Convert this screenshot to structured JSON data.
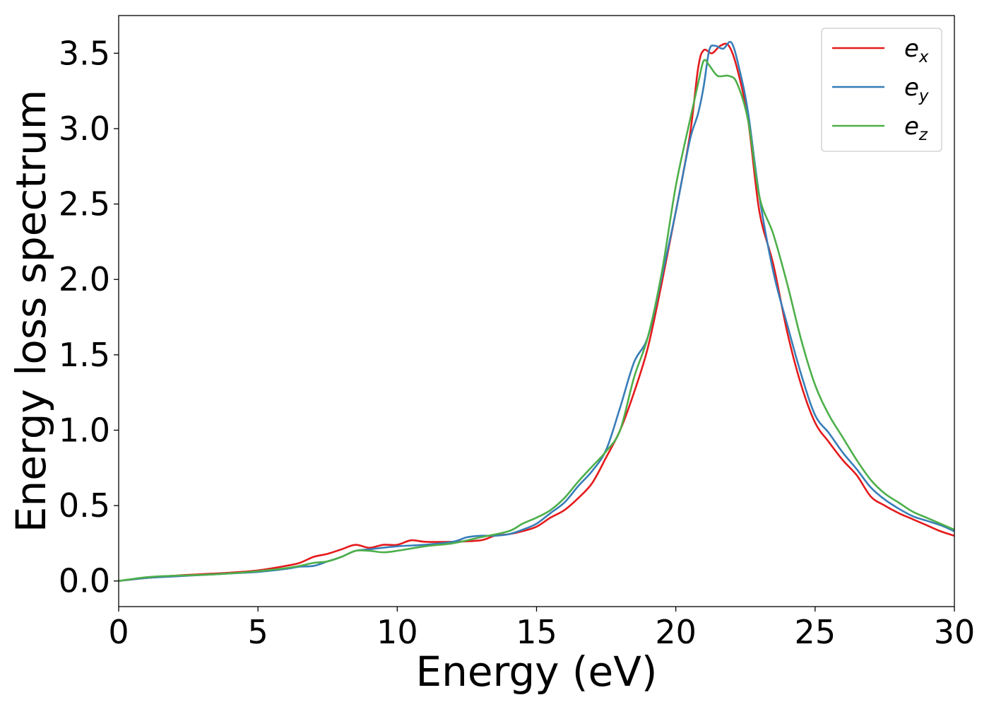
{
  "chart_data": {
    "type": "line",
    "title": "",
    "xlabel": "Energy (eV)",
    "ylabel": "Energy loss spectrum",
    "xlim": [
      0,
      30
    ],
    "ylim": [
      -0.17,
      3.75
    ],
    "xticks": [
      0,
      5,
      10,
      15,
      20,
      25,
      30
    ],
    "xtick_labels": [
      "0",
      "5",
      "10",
      "15",
      "20",
      "25",
      "30"
    ],
    "yticks": [
      0.0,
      0.5,
      1.0,
      1.5,
      2.0,
      2.5,
      3.0,
      3.5
    ],
    "ytick_labels": [
      "0.0",
      "0.5",
      "1.0",
      "1.5",
      "2.0",
      "2.5",
      "3.0",
      "3.5"
    ],
    "grid": false,
    "legend_position": "top-right",
    "series": [
      {
        "name": "e",
        "subscript": "x",
        "color": "#e41a1c",
        "points": [
          [
            0,
            0
          ],
          [
            1,
            0.02
          ],
          [
            2,
            0.035
          ],
          [
            3,
            0.045
          ],
          [
            4,
            0.055
          ],
          [
            5,
            0.07
          ],
          [
            6,
            0.1
          ],
          [
            6.5,
            0.12
          ],
          [
            7,
            0.16
          ],
          [
            7.5,
            0.18
          ],
          [
            8,
            0.21
          ],
          [
            8.5,
            0.24
          ],
          [
            9,
            0.22
          ],
          [
            9.5,
            0.24
          ],
          [
            10,
            0.24
          ],
          [
            10.5,
            0.27
          ],
          [
            11,
            0.26
          ],
          [
            12,
            0.26
          ],
          [
            13,
            0.27
          ],
          [
            13.5,
            0.3
          ],
          [
            14,
            0.31
          ],
          [
            14.5,
            0.33
          ],
          [
            15,
            0.36
          ],
          [
            15.5,
            0.42
          ],
          [
            16,
            0.47
          ],
          [
            16.5,
            0.55
          ],
          [
            17,
            0.65
          ],
          [
            17.5,
            0.82
          ],
          [
            18,
            1.0
          ],
          [
            18.5,
            1.25
          ],
          [
            19,
            1.55
          ],
          [
            19.5,
            1.98
          ],
          [
            20,
            2.45
          ],
          [
            20.5,
            2.95
          ],
          [
            20.8,
            3.4
          ],
          [
            21,
            3.52
          ],
          [
            21.3,
            3.5
          ],
          [
            21.6,
            3.55
          ],
          [
            21.9,
            3.55
          ],
          [
            22.2,
            3.4
          ],
          [
            22.6,
            3.05
          ],
          [
            23,
            2.45
          ],
          [
            23.5,
            2.1
          ],
          [
            24,
            1.65
          ],
          [
            24.5,
            1.3
          ],
          [
            25,
            1.05
          ],
          [
            25.5,
            0.92
          ],
          [
            26,
            0.8
          ],
          [
            26.5,
            0.7
          ],
          [
            27,
            0.56
          ],
          [
            27.5,
            0.5
          ],
          [
            28,
            0.45
          ],
          [
            28.5,
            0.41
          ],
          [
            29,
            0.37
          ],
          [
            29.5,
            0.33
          ],
          [
            30,
            0.3
          ]
        ]
      },
      {
        "name": "e",
        "subscript": "y",
        "color": "#377eb8",
        "points": [
          [
            0,
            0
          ],
          [
            1,
            0.02
          ],
          [
            2,
            0.03
          ],
          [
            3,
            0.04
          ],
          [
            4,
            0.05
          ],
          [
            5,
            0.06
          ],
          [
            6,
            0.08
          ],
          [
            6.5,
            0.095
          ],
          [
            7,
            0.1
          ],
          [
            7.5,
            0.13
          ],
          [
            8,
            0.16
          ],
          [
            8.5,
            0.2
          ],
          [
            9,
            0.21
          ],
          [
            10,
            0.23
          ],
          [
            11,
            0.24
          ],
          [
            12,
            0.26
          ],
          [
            12.5,
            0.29
          ],
          [
            13,
            0.3
          ],
          [
            13.5,
            0.3
          ],
          [
            14,
            0.31
          ],
          [
            14.5,
            0.34
          ],
          [
            15,
            0.38
          ],
          [
            15.5,
            0.45
          ],
          [
            16,
            0.52
          ],
          [
            16.5,
            0.63
          ],
          [
            17,
            0.73
          ],
          [
            17.5,
            0.87
          ],
          [
            18,
            1.15
          ],
          [
            18.5,
            1.45
          ],
          [
            19,
            1.62
          ],
          [
            19.5,
            2.02
          ],
          [
            20,
            2.45
          ],
          [
            20.5,
            2.92
          ],
          [
            20.8,
            3.1
          ],
          [
            21,
            3.28
          ],
          [
            21.2,
            3.52
          ],
          [
            21.4,
            3.55
          ],
          [
            21.7,
            3.53
          ],
          [
            22,
            3.57
          ],
          [
            22.3,
            3.38
          ],
          [
            22.6,
            3.1
          ],
          [
            23,
            2.55
          ],
          [
            23.5,
            2.05
          ],
          [
            24,
            1.7
          ],
          [
            24.5,
            1.37
          ],
          [
            25,
            1.1
          ],
          [
            25.5,
            0.98
          ],
          [
            26,
            0.85
          ],
          [
            26.5,
            0.74
          ],
          [
            27,
            0.62
          ],
          [
            27.5,
            0.54
          ],
          [
            28,
            0.48
          ],
          [
            28.5,
            0.43
          ],
          [
            29,
            0.4
          ],
          [
            29.5,
            0.37
          ],
          [
            30,
            0.33
          ]
        ]
      },
      {
        "name": "e",
        "subscript": "z",
        "color": "#4daf4a",
        "points": [
          [
            0,
            0
          ],
          [
            1,
            0.025
          ],
          [
            2,
            0.035
          ],
          [
            3,
            0.04
          ],
          [
            4,
            0.05
          ],
          [
            5,
            0.065
          ],
          [
            6,
            0.085
          ],
          [
            6.5,
            0.1
          ],
          [
            7,
            0.12
          ],
          [
            7.5,
            0.13
          ],
          [
            8,
            0.16
          ],
          [
            8.5,
            0.2
          ],
          [
            9,
            0.2
          ],
          [
            9.5,
            0.19
          ],
          [
            10,
            0.2
          ],
          [
            11,
            0.23
          ],
          [
            12,
            0.25
          ],
          [
            13,
            0.29
          ],
          [
            14,
            0.33
          ],
          [
            14.5,
            0.38
          ],
          [
            15,
            0.42
          ],
          [
            15.5,
            0.47
          ],
          [
            16,
            0.55
          ],
          [
            16.5,
            0.66
          ],
          [
            17,
            0.76
          ],
          [
            17.5,
            0.86
          ],
          [
            18,
            1.0
          ],
          [
            18.5,
            1.35
          ],
          [
            19,
            1.62
          ],
          [
            19.5,
            2.05
          ],
          [
            20,
            2.62
          ],
          [
            20.5,
            3.05
          ],
          [
            20.8,
            3.3
          ],
          [
            21,
            3.45
          ],
          [
            21.2,
            3.42
          ],
          [
            21.5,
            3.35
          ],
          [
            21.9,
            3.35
          ],
          [
            22.2,
            3.3
          ],
          [
            22.6,
            3.05
          ],
          [
            23,
            2.55
          ],
          [
            23.5,
            2.3
          ],
          [
            24,
            1.97
          ],
          [
            24.5,
            1.6
          ],
          [
            25,
            1.3
          ],
          [
            25.5,
            1.1
          ],
          [
            26,
            0.95
          ],
          [
            26.5,
            0.8
          ],
          [
            27,
            0.67
          ],
          [
            27.5,
            0.58
          ],
          [
            28,
            0.52
          ],
          [
            28.5,
            0.46
          ],
          [
            29,
            0.42
          ],
          [
            29.5,
            0.38
          ],
          [
            30,
            0.34
          ]
        ]
      }
    ]
  }
}
